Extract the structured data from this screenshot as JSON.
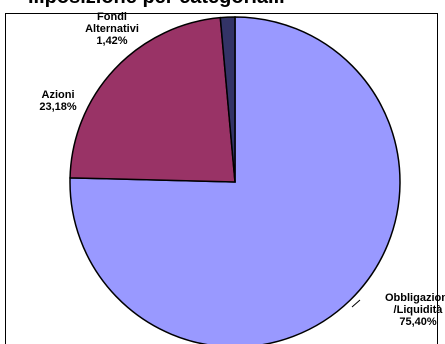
{
  "chart_data": {
    "type": "pie",
    "title": "...posizione per categoria...",
    "categories": [
      "Obbligazioni/Liquidità",
      "Azioni",
      "Fondi Alternativi"
    ],
    "values": [
      75.4,
      23.18,
      1.42
    ],
    "value_labels": [
      "75,40%",
      "23,18%",
      "1,42%"
    ],
    "label_lines": [
      [
        "Obbligazioni",
        "/Liquidità",
        "75,40%"
      ],
      [
        "Azioni",
        "23,18%"
      ],
      [
        "Fondi",
        "Alternativi",
        "1,42%"
      ]
    ],
    "colors": [
      "#9999FF",
      "#993366",
      "#333366"
    ],
    "start_angle_deg": 0,
    "direction": "clockwise",
    "legend": "none",
    "grid": false
  }
}
